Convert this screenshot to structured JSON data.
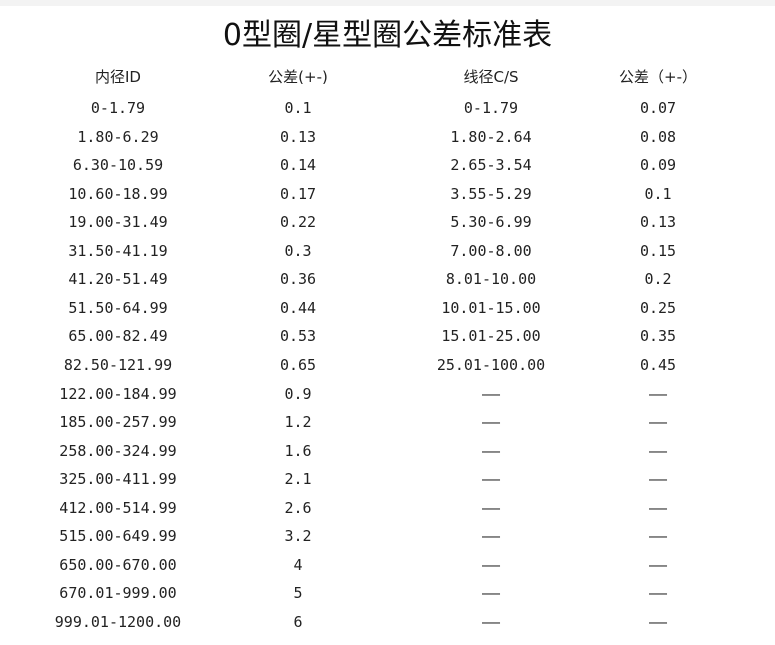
{
  "title": "0型圈/星型圈公差标准表",
  "headers": [
    "内径ID",
    "公差(+-)",
    "线径C/S",
    "公差（+-）"
  ],
  "rows": [
    [
      "0-1.79",
      "0.1",
      "0-1.79",
      "0.07"
    ],
    [
      "1.80-6.29",
      "0.13",
      "1.80-2.64",
      "0.08"
    ],
    [
      "6.30-10.59",
      "0.14",
      "2.65-3.54",
      "0.09"
    ],
    [
      "10.60-18.99",
      "0.17",
      "3.55-5.29",
      "0.1"
    ],
    [
      "19.00-31.49",
      "0.22",
      "5.30-6.99",
      "0.13"
    ],
    [
      "31.50-41.19",
      "0.3",
      "7.00-8.00",
      "0.15"
    ],
    [
      "41.20-51.49",
      "0.36",
      "8.01-10.00",
      "0.2"
    ],
    [
      "51.50-64.99",
      "0.44",
      "10.01-15.00",
      "0.25"
    ],
    [
      "65.00-82.49",
      "0.53",
      "15.01-25.00",
      "0.35"
    ],
    [
      "82.50-121.99",
      "0.65",
      "25.01-100.00",
      "0.45"
    ],
    [
      "122.00-184.99",
      "0.9",
      "——",
      "——"
    ],
    [
      "185.00-257.99",
      "1.2",
      "——",
      "——"
    ],
    [
      "258.00-324.99",
      "1.6",
      "——",
      "——"
    ],
    [
      "325.00-411.99",
      "2.1",
      "——",
      "——"
    ],
    [
      "412.00-514.99",
      "2.6",
      "——",
      "——"
    ],
    [
      "515.00-649.99",
      "3.2",
      "——",
      "——"
    ],
    [
      "650.00-670.00",
      "4",
      "——",
      "——"
    ],
    [
      "670.01-999.00",
      "5",
      "——",
      "——"
    ],
    [
      "999.01-1200.00",
      "6",
      "——",
      "——"
    ]
  ]
}
